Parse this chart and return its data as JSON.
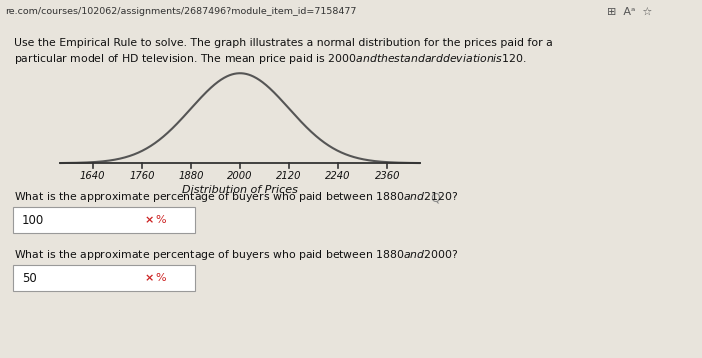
{
  "background_color": "#e8e4dc",
  "url_bar_color": "#d8d4cc",
  "mean": 2000,
  "std": 120,
  "x_ticks": [
    1640,
    1760,
    1880,
    2000,
    2120,
    2240,
    2360
  ],
  "xlabel": "Distribution of Prices",
  "curve_color": "#555555",
  "axis_color": "#333333",
  "text_color": "#111111",
  "url_text": "re.com/courses/102062/assignments/2687496?module_item_id=7158477",
  "header_line1": "Use the Empirical Rule to solve. The graph illustrates a normal distribution for the prices paid for a",
  "header_line2": "particular model of HD television. The mean price paid is $2000 and the standard deviation is $120.",
  "q1_text": "What is the approximate percentage of buyers who paid between $1880 and $2120?",
  "q1_answer": "100",
  "q2_text": "What is the approximate percentage of buyers who paid between $1880 and $2000?",
  "q2_answer": "50",
  "input_box_color": "#ffffff",
  "input_box_edge": "#999999",
  "wrong_color": "#cc2222"
}
